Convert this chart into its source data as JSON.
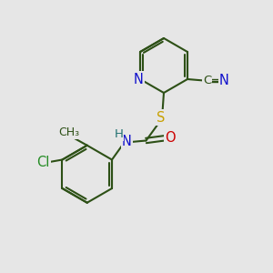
{
  "bg_color": "#e6e6e6",
  "bond_color": "#2d5016",
  "bond_width": 1.5,
  "atom_colors": {
    "N": "#1010cc",
    "S": "#c8a000",
    "O": "#cc0000",
    "C": "#2d5016",
    "Cl": "#228B22",
    "H": "#207070"
  },
  "font_size": 9.5,
  "fig_bg": "#e6e6e6"
}
